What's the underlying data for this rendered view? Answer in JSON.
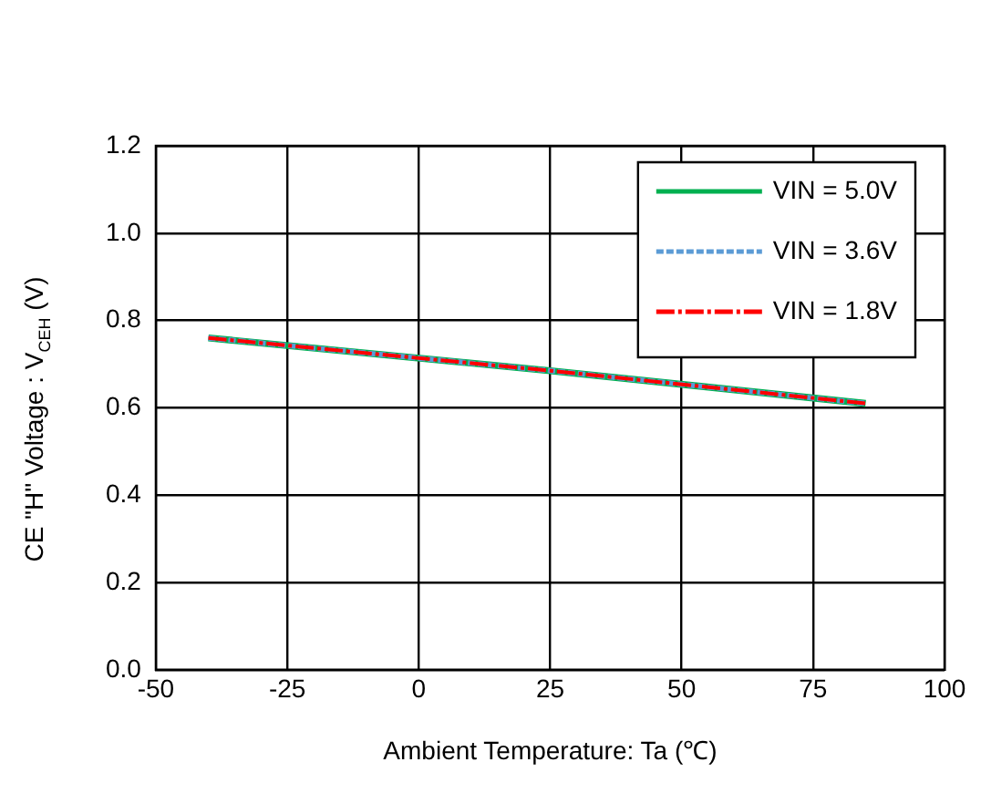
{
  "chart_data": {
    "type": "line",
    "xlabel": "Ambient Temperature: Ta (℃)",
    "ylabel": "CE \"H\" Voltage : V$_{CEH}$ (V)",
    "xlim": [
      -50,
      100
    ],
    "xticks": [
      -50,
      -25,
      0,
      25,
      50,
      75,
      100
    ],
    "ylim": [
      0,
      1.2
    ],
    "yticks": [
      {
        "value": 0,
        "label": "0.0"
      },
      {
        "value": 0.2,
        "label": "0.2"
      },
      {
        "value": 0.4,
        "label": "0.4"
      },
      {
        "value": 0.6,
        "label": "0.6"
      },
      {
        "value": 0.8,
        "label": "0.8"
      },
      {
        "value": 1,
        "label": "1.0"
      },
      {
        "value": 1.2,
        "label": "1.2"
      }
    ],
    "grid": true,
    "legend": "top right",
    "marker": "none",
    "x": [
      -40,
      25,
      85
    ],
    "series": [
      {
        "name": "VIN = 5.0V",
        "color": "#00b050",
        "line_style": "solid",
        "values": [
          0.76,
          0.685,
          0.61
        ]
      },
      {
        "name": "VIN = 3.6V",
        "color": "#5b9bd5",
        "line_style": "dashed",
        "values": [
          0.76,
          0.685,
          0.61
        ]
      },
      {
        "name": "VIN = 1.8V",
        "color": "#ff0000",
        "line_style": "dashdot",
        "values": [
          0.76,
          0.685,
          0.61
        ]
      }
    ]
  }
}
